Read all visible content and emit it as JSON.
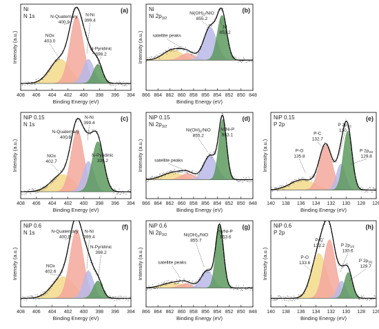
{
  "figure": {
    "colors": {
      "NOx": "#f2d98a",
      "N-Quaternary": "#f3a89c",
      "N-Ni": "#b8b8e8",
      "N-Pyridinic": "#5d9a5e",
      "satellite": "#f2d98a",
      "Ni(OH)2/NiO": "#b8b8e8",
      "Ni": "#5d9a5e",
      "P-O": "#f2d98a",
      "P-C": "#f3a89c",
      "P 2p1/2": "#b8b8e8",
      "P 2p3/2": "#5d9a5e",
      "envelope": "#000000",
      "points": "#666666"
    },
    "panels": [
      {
        "id": "a",
        "title1": "Ni",
        "title2": "N 1s",
        "letter": "(a)",
        "chart_data": {
          "type": "line",
          "xlabel": "Binding Energy (eV)",
          "ylabel": "Intensity (a.u.)",
          "xlim": [
            408,
            394
          ],
          "xticks": [
            408,
            406,
            404,
            402,
            400,
            398,
            396,
            394
          ],
          "baseline": 0.08,
          "series": [
            {
              "name": "NOx",
              "peak": 403.0,
              "height": 0.28,
              "sigma": 1.3,
              "color_key": "NOx"
            },
            {
              "name": "N-Quaternary",
              "peak": 400.9,
              "height": 0.78,
              "sigma": 0.85,
              "color_key": "N-Quaternary"
            },
            {
              "name": "N-Ni",
              "peak": 399.4,
              "height": 0.28,
              "sigma": 0.7,
              "color_key": "N-Ni"
            },
            {
              "name": "N-Pyridinic",
              "peak": 398.2,
              "height": 0.22,
              "sigma": 0.6,
              "color_key": "N-Pyridinic"
            }
          ]
        },
        "labels": [
          {
            "name": "NOx",
            "value": "403.0",
            "tip": [
              403.0,
              0.36
            ],
            "lx": 404.3,
            "ly": 0.62
          },
          {
            "name": "N-Quaternary",
            "value": "400.9",
            "tip": [
              401.4,
              0.8
            ],
            "lx": 402.5,
            "ly": 0.84
          },
          {
            "name": "N-Ni",
            "value": "399.4",
            "tip": [
              399.6,
              0.42
            ],
            "lx": 399.2,
            "ly": 0.86
          },
          {
            "name": "N-Pyridinic",
            "value": "398.2",
            "tip": [
              398.3,
              0.28
            ],
            "lx": 397.8,
            "ly": 0.47
          }
        ]
      },
      {
        "id": "b",
        "title1": "Ni",
        "title2": "Ni 2p3/2",
        "letter": "(b)",
        "chart_data": {
          "type": "line",
          "xlabel": "Binding Energy (eV)",
          "ylabel": "Intensity (a.u.)",
          "xlim": [
            866,
            848
          ],
          "xticks": [
            866,
            864,
            862,
            860,
            858,
            856,
            854,
            852,
            850,
            848
          ],
          "baseline": 0.35,
          "series": [
            {
              "name": "satellite peaks",
              "peak": 861.5,
              "height": 0.12,
              "sigma": 1.6,
              "color_key": "satellite"
            },
            {
              "name": "satellite peaks",
              "peak": 859.0,
              "height": 0.08,
              "sigma": 1.2,
              "color_key": "N-Quaternary"
            },
            {
              "name": "Ni(OH)2/NiO",
              "peak": 855.2,
              "height": 0.38,
              "sigma": 1.1,
              "color_key": "Ni(OH)2/NiO"
            },
            {
              "name": "Ni",
              "peak": 853.2,
              "height": 0.52,
              "sigma": 0.8,
              "color_key": "Ni"
            }
          ]
        },
        "labels": [
          {
            "name": "satellite peaks",
            "value": "",
            "tip": [
              859.5,
              0.47
            ],
            "lx": 862.5,
            "ly": 0.62
          },
          {
            "name": "Ni(OH)2/NiO",
            "value": "855.2",
            "tip": [
              855.4,
              0.74
            ],
            "lx": 856.6,
            "ly": 0.88
          },
          {
            "name": "Ni",
            "value": "853.2",
            "tip": [
              853.5,
              0.82
            ],
            "lx": 852.7,
            "ly": 0.72
          }
        ]
      },
      {
        "id": "c",
        "title1": "NiP 0.15",
        "title2": "N 1s",
        "letter": "(c)",
        "chart_data": {
          "type": "line",
          "xlabel": "Binding Energy (eV)",
          "ylabel": "Intensity (a.u.)",
          "xlim": [
            408,
            394
          ],
          "xticks": [
            408,
            406,
            404,
            402,
            400,
            398,
            396,
            394
          ],
          "baseline": 0.08,
          "series": [
            {
              "name": "NOx",
              "peak": 402.7,
              "height": 0.2,
              "sigma": 1.4,
              "color_key": "NOx"
            },
            {
              "name": "N-Quaternary",
              "peak": 400.8,
              "height": 0.72,
              "sigma": 0.8,
              "color_key": "N-Quaternary"
            },
            {
              "name": "N-Ni",
              "peak": 399.4,
              "height": 0.35,
              "sigma": 0.7,
              "color_key": "N-Ni"
            },
            {
              "name": "N-Pyridinic",
              "peak": 398.2,
              "height": 0.58,
              "sigma": 0.75,
              "color_key": "N-Pyridinic"
            }
          ]
        },
        "labels": [
          {
            "name": "NOx",
            "value": "402.7",
            "tip": [
              403.2,
              0.32
            ],
            "lx": 404.1,
            "ly": 0.48
          },
          {
            "name": "N-Quaternary",
            "value": "400.8",
            "tip": [
              401.3,
              0.78
            ],
            "lx": 402.3,
            "ly": 0.76
          },
          {
            "name": "N-Ni",
            "value": "399.4",
            "tip": [
              399.5,
              0.68
            ],
            "lx": 399.3,
            "ly": 0.93
          },
          {
            "name": "N-Pyridinic",
            "value": "398.2",
            "tip": [
              398.0,
              0.58
            ],
            "lx": 397.6,
            "ly": 0.49
          }
        ]
      },
      {
        "id": "d",
        "title1": "NiP 0.15",
        "title2": "Ni 2p3/2",
        "letter": "(d)",
        "chart_data": {
          "type": "line",
          "xlabel": "Binding Energy (eV)",
          "ylabel": "Intensity (a.u.)",
          "xlim": [
            866,
            848
          ],
          "xticks": [
            866,
            864,
            862,
            860,
            858,
            856,
            854,
            852,
            850,
            848
          ],
          "baseline": 0.22,
          "series": [
            {
              "name": "satellite peaks",
              "peak": 861.5,
              "height": 0.08,
              "sigma": 1.8,
              "color_key": "satellite"
            },
            {
              "name": "satellite peaks",
              "peak": 859.0,
              "height": 0.07,
              "sigma": 1.2,
              "color_key": "N-Quaternary"
            },
            {
              "name": "Ni(OH)2/NiO",
              "peak": 855.2,
              "height": 0.28,
              "sigma": 1.1,
              "color_key": "Ni(OH)2/NiO"
            },
            {
              "name": "Ni/Ni-P",
              "peak": 853.1,
              "height": 0.7,
              "sigma": 0.65,
              "color_key": "Ni"
            }
          ]
        },
        "labels": [
          {
            "name": "satellite peaks",
            "value": "",
            "tip": [
              859.8,
              0.34
            ],
            "lx": 862.2,
            "ly": 0.43
          },
          {
            "name": "Ni(OH)2/NiO",
            "value": "855.2",
            "tip": [
              855.6,
              0.54
            ],
            "lx": 857.2,
            "ly": 0.78
          },
          {
            "name": "Ni/Ni-P",
            "value": "853.1",
            "tip": [
              853.6,
              0.78
            ],
            "lx": 852.3,
            "ly": 0.79
          }
        ]
      },
      {
        "id": "e",
        "title1": "NiP 0.15",
        "title2": "P 2p",
        "letter": "(e)",
        "chart_data": {
          "type": "line",
          "xlabel": "Binding Energy (eV)",
          "ylabel": "Intensity (a.u.)",
          "xlim": [
            140,
            126
          ],
          "xticks": [
            140,
            138,
            136,
            134,
            132,
            130,
            128,
            126
          ],
          "baseline": 0.1,
          "series": [
            {
              "name": "P-O",
              "peak": 135.8,
              "height": 0.12,
              "sigma": 1.6,
              "color_key": "P-O"
            },
            {
              "name": "P-C",
              "peak": 132.7,
              "height": 0.52,
              "sigma": 0.85,
              "color_key": "P-C"
            },
            {
              "name": "P 2p1/2",
              "peak": 130.7,
              "height": 0.3,
              "sigma": 0.6,
              "color_key": "P 2p1/2"
            },
            {
              "name": "P 2p3/2",
              "peak": 129.8,
              "height": 0.68,
              "sigma": 0.6,
              "color_key": "P 2p3/2"
            }
          ]
        },
        "labels": [
          {
            "name": "P-O",
            "value": "135.8",
            "tip": [
              135.4,
              0.3
            ],
            "lx": 136.2,
            "ly": 0.54
          },
          {
            "name": "P-C",
            "value": "132.7",
            "tip": [
              133.0,
              0.58
            ],
            "lx": 133.8,
            "ly": 0.74
          },
          {
            "name": "P 2p1/2",
            "value": "130.7",
            "tip": [
              130.9,
              0.5
            ],
            "lx": 130.2,
            "ly": 0.84
          },
          {
            "name": "P 2p3/2",
            "value": "129.8",
            "tip": [
              129.4,
              0.4
            ],
            "lx": 127.3,
            "ly": 0.54
          }
        ]
      },
      {
        "id": "f",
        "title1": "NiP 0.6",
        "title2": "N 1s",
        "letter": "(f)",
        "chart_data": {
          "type": "line",
          "xlabel": "Binding Energy (eV)",
          "ylabel": "Intensity (a.u.)",
          "xlim": [
            408,
            394
          ],
          "xticks": [
            408,
            406,
            404,
            402,
            400,
            398,
            396,
            394
          ],
          "baseline": 0.1,
          "series": [
            {
              "name": "NOx",
              "peak": 402.6,
              "height": 0.25,
              "sigma": 1.4,
              "color_key": "NOx"
            },
            {
              "name": "N-Quaternary",
              "peak": 400.9,
              "height": 0.8,
              "sigma": 0.85,
              "color_key": "N-Quaternary"
            },
            {
              "name": "N-Ni",
              "peak": 399.4,
              "height": 0.32,
              "sigma": 0.65,
              "color_key": "N-Ni"
            },
            {
              "name": "N-Pyridinic",
              "peak": 398.2,
              "height": 0.2,
              "sigma": 0.6,
              "color_key": "N-Pyridinic"
            }
          ]
        },
        "labels": [
          {
            "name": "NOx",
            "value": "402.6",
            "tip": [
              402.8,
              0.36
            ],
            "lx": 404.2,
            "ly": 0.46
          },
          {
            "name": "N-Quaternary",
            "value": "400.9",
            "tip": [
              401.4,
              0.82
            ],
            "lx": 402.4,
            "ly": 0.86
          },
          {
            "name": "N-Ni",
            "value": "399.4",
            "tip": [
              399.6,
              0.44
            ],
            "lx": 399.3,
            "ly": 0.86
          },
          {
            "name": "N-Pyridinic",
            "value": "398.2",
            "tip": [
              398.2,
              0.3
            ],
            "lx": 397.8,
            "ly": 0.68
          }
        ]
      },
      {
        "id": "g",
        "title1": "NiP 0.6",
        "title2": "Ni 2p3/2",
        "letter": "(g)",
        "chart_data": {
          "type": "line",
          "xlabel": "Binding Energy (eV)",
          "ylabel": "Intensity (a.u.)",
          "xlim": [
            866,
            848
          ],
          "xticks": [
            866,
            864,
            862,
            860,
            858,
            856,
            854,
            852,
            850,
            848
          ],
          "baseline": 0.22,
          "series": [
            {
              "name": "satellite peaks",
              "peak": 861.5,
              "height": 0.06,
              "sigma": 1.8,
              "color_key": "satellite"
            },
            {
              "name": "satellite peaks",
              "peak": 859.3,
              "height": 0.05,
              "sigma": 1.1,
              "color_key": "N-Quaternary"
            },
            {
              "name": "Ni(OH)2/NiO",
              "peak": 855.7,
              "height": 0.2,
              "sigma": 1.0,
              "color_key": "Ni(OH)2/NiO"
            },
            {
              "name": "Ni/Ni-P",
              "peak": 853.6,
              "height": 0.72,
              "sigma": 0.65,
              "color_key": "Ni"
            }
          ]
        },
        "labels": [
          {
            "name": "satellite peaks",
            "value": "",
            "tip": [
              860.2,
              0.33
            ],
            "lx": 861.6,
            "ly": 0.5
          },
          {
            "name": "Ni(OH)2/NiO",
            "value": "855.7",
            "tip": [
              856.2,
              0.46
            ],
            "lx": 857.6,
            "ly": 0.82
          },
          {
            "name": "Ni/Ni-P",
            "value": "853.6",
            "tip": [
              854.0,
              0.86
            ],
            "lx": 852.6,
            "ly": 0.86
          }
        ]
      },
      {
        "id": "h",
        "title1": "NiP 0.6",
        "title2": "P 2p",
        "letter": "(h)",
        "chart_data": {
          "type": "line",
          "xlabel": "Binding Energy (eV)",
          "ylabel": "Intensity (a.u.)",
          "xlim": [
            140,
            126
          ],
          "xticks": [
            140,
            138,
            136,
            134,
            132,
            130,
            128,
            126
          ],
          "baseline": 0.1,
          "series": [
            {
              "name": "P-O",
              "peak": 133.6,
              "height": 0.52,
              "sigma": 1.0,
              "color_key": "P-O"
            },
            {
              "name": "P-C",
              "peak": 132.2,
              "height": 0.68,
              "sigma": 0.8,
              "color_key": "P-C"
            },
            {
              "name": "P 2p1/2",
              "peak": 130.6,
              "height": 0.2,
              "sigma": 0.55,
              "color_key": "P 2p1/2"
            },
            {
              "name": "P 2p3/2",
              "peak": 129.7,
              "height": 0.3,
              "sigma": 0.55,
              "color_key": "P 2p3/2"
            }
          ]
        },
        "labels": [
          {
            "name": "P-O",
            "value": "133.6",
            "tip": [
              134.6,
              0.42
            ],
            "lx": 135.5,
            "ly": 0.56
          },
          {
            "name": "P-C",
            "value": "132.2",
            "tip": [
              133.0,
              0.8
            ],
            "lx": 133.6,
            "ly": 0.76
          },
          {
            "name": "P 2p1/2",
            "value": "130.6",
            "tip": [
              130.8,
              0.4
            ],
            "lx": 129.8,
            "ly": 0.7
          },
          {
            "name": "P 2p3/2",
            "value": "129.7",
            "tip": [
              129.6,
              0.3
            ],
            "lx": 127.4,
            "ly": 0.52
          }
        ]
      }
    ]
  }
}
